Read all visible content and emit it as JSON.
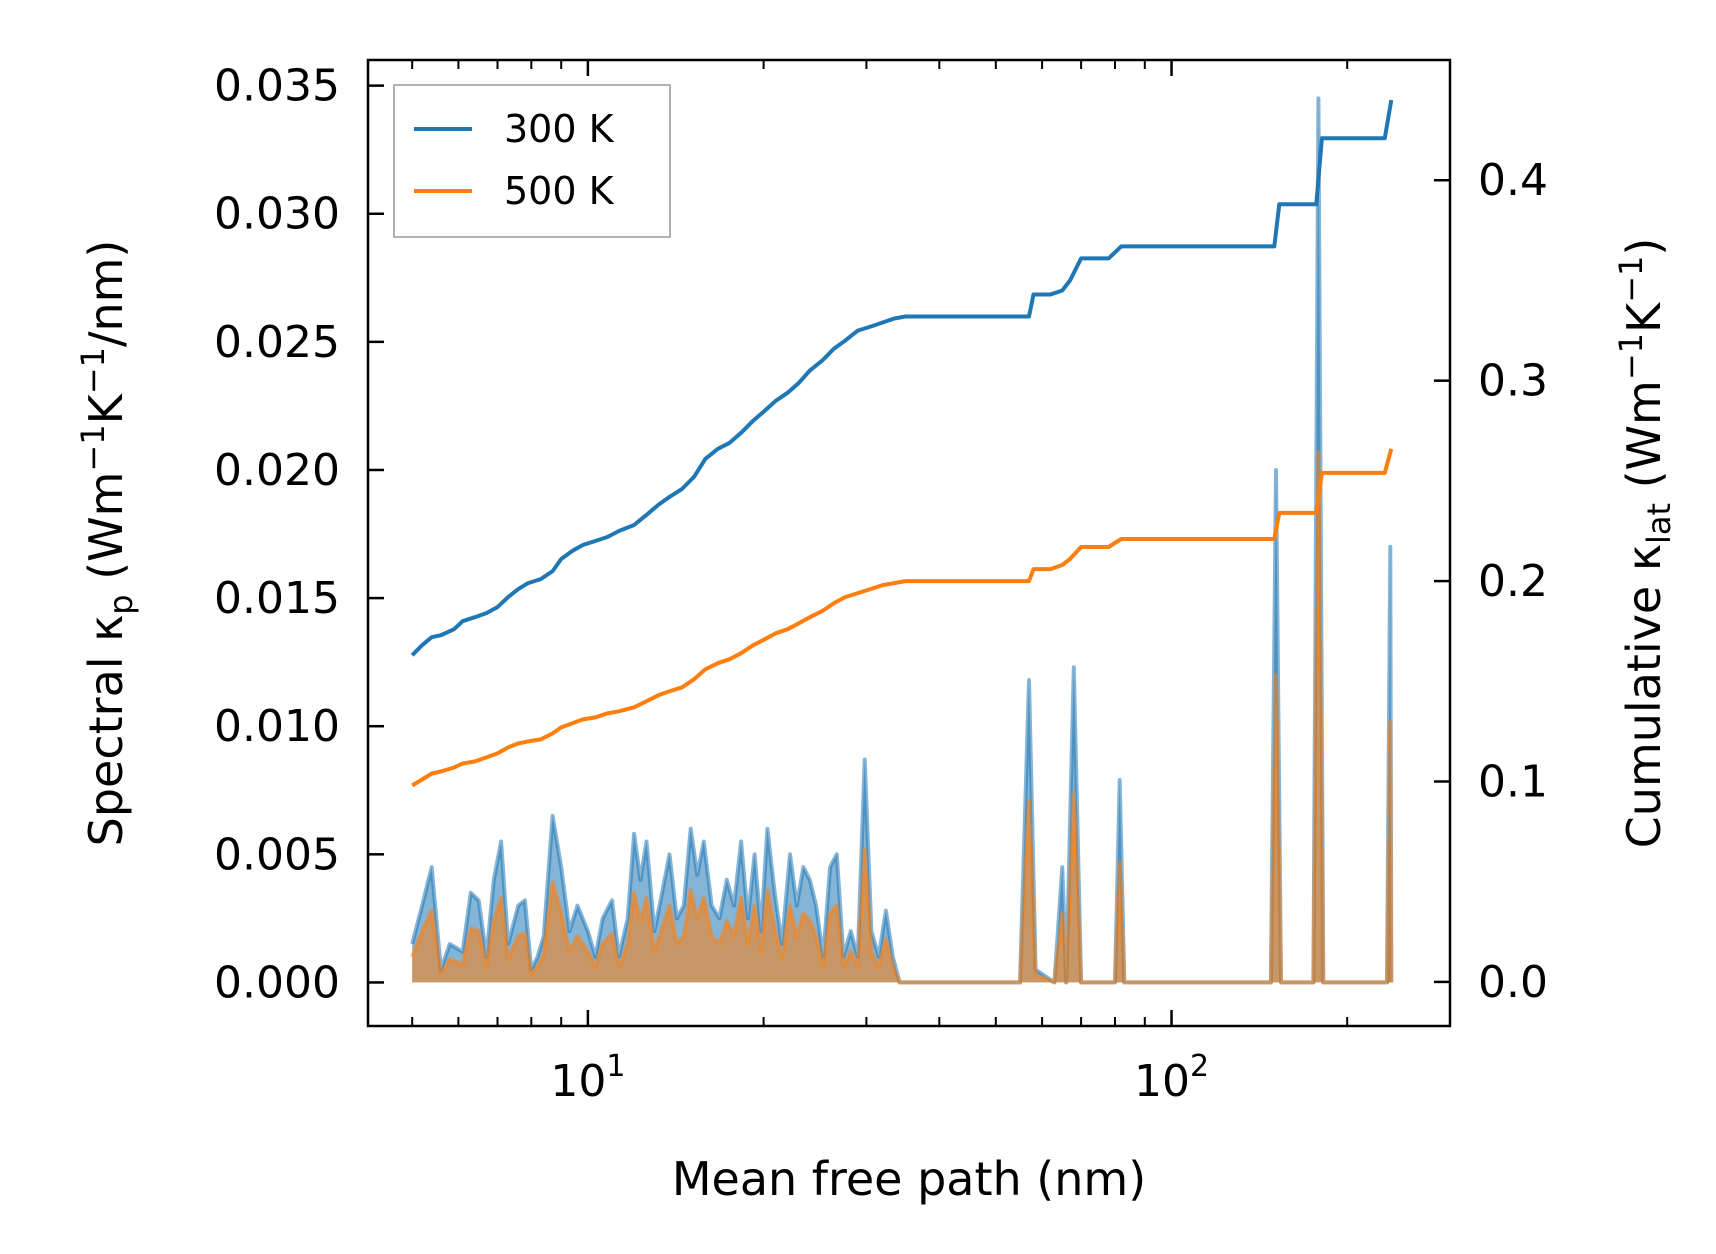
{
  "chart_data": {
    "type": "line",
    "title": "",
    "xlabel": "Mean free path (nm)",
    "xscale": "log",
    "xlim": [
      4.2,
      300
    ],
    "ylabel_left": {
      "main": "Spectral κ",
      "sub": "p",
      "unit_open": " (Wm",
      "sup1": "−1",
      "mid": "K",
      "sup2": "−1",
      "unit_close": "/nm)"
    },
    "ylabel_right": {
      "main": "Cumulative κ",
      "sub": "lat",
      "unit_open": " (Wm",
      "sup1": "−1",
      "mid": "K",
      "sup2": "−1",
      "unit_close": ")"
    },
    "ylim_left": [
      -0.0017,
      0.036
    ],
    "ylim_right": [
      -0.022,
      0.46
    ],
    "xticks": [
      {
        "value": 10,
        "base": "10",
        "exp": "1"
      },
      {
        "value": 100,
        "base": "10",
        "exp": "2"
      }
    ],
    "yticks_left": [
      {
        "value": 0.0,
        "label": "0.000"
      },
      {
        "value": 0.005,
        "label": "0.005"
      },
      {
        "value": 0.01,
        "label": "0.010"
      },
      {
        "value": 0.015,
        "label": "0.015"
      },
      {
        "value": 0.02,
        "label": "0.020"
      },
      {
        "value": 0.025,
        "label": "0.025"
      },
      {
        "value": 0.03,
        "label": "0.030"
      },
      {
        "value": 0.035,
        "label": "0.035"
      }
    ],
    "yticks_right": [
      {
        "value": 0.0,
        "label": "0.0"
      },
      {
        "value": 0.1,
        "label": "0.1"
      },
      {
        "value": 0.2,
        "label": "0.2"
      },
      {
        "value": 0.3,
        "label": "0.3"
      },
      {
        "value": 0.4,
        "label": "0.4"
      }
    ],
    "legend": {
      "position": "upper-left",
      "entries": [
        {
          "label": "300 K",
          "color": "#1f77b4"
        },
        {
          "label": "500 K",
          "color": "#ff7f0e"
        }
      ]
    },
    "series": [
      {
        "name": "300 K",
        "color": "#1f77b4",
        "cumulative": [
          [
            5.0,
            0.163
          ],
          [
            5.2,
            0.168
          ],
          [
            5.4,
            0.172
          ],
          [
            5.6,
            0.173
          ],
          [
            5.9,
            0.176
          ],
          [
            6.1,
            0.18
          ],
          [
            6.4,
            0.182
          ],
          [
            6.7,
            0.184
          ],
          [
            7.0,
            0.187
          ],
          [
            7.3,
            0.192
          ],
          [
            7.6,
            0.196
          ],
          [
            7.9,
            0.199
          ],
          [
            8.3,
            0.201
          ],
          [
            8.7,
            0.205
          ],
          [
            9.0,
            0.211
          ],
          [
            9.4,
            0.215
          ],
          [
            9.8,
            0.218
          ],
          [
            10.3,
            0.22
          ],
          [
            10.8,
            0.222
          ],
          [
            11.3,
            0.225
          ],
          [
            12.0,
            0.228
          ],
          [
            12.6,
            0.233
          ],
          [
            13.2,
            0.238
          ],
          [
            13.8,
            0.242
          ],
          [
            14.5,
            0.246
          ],
          [
            15.2,
            0.252
          ],
          [
            15.9,
            0.261
          ],
          [
            16.7,
            0.266
          ],
          [
            17.5,
            0.269
          ],
          [
            18.3,
            0.274
          ],
          [
            19.2,
            0.28
          ],
          [
            20.1,
            0.285
          ],
          [
            21.0,
            0.29
          ],
          [
            22.0,
            0.294
          ],
          [
            23.0,
            0.299
          ],
          [
            24.0,
            0.305
          ],
          [
            25.2,
            0.31
          ],
          [
            26.4,
            0.316
          ],
          [
            27.6,
            0.32
          ],
          [
            29.0,
            0.325
          ],
          [
            30.5,
            0.327
          ],
          [
            32.0,
            0.329
          ],
          [
            33.5,
            0.331
          ],
          [
            35.0,
            0.332
          ],
          [
            57.0,
            0.332
          ],
          [
            58.0,
            0.343
          ],
          [
            62.0,
            0.343
          ],
          [
            65.0,
            0.345
          ],
          [
            67.0,
            0.35
          ],
          [
            70.0,
            0.361
          ],
          [
            78.0,
            0.361
          ],
          [
            82.0,
            0.367
          ],
          [
            150.0,
            0.367
          ],
          [
            153.0,
            0.388
          ],
          [
            177.0,
            0.388
          ],
          [
            181.0,
            0.421
          ],
          [
            232.0,
            0.421
          ],
          [
            238.0,
            0.44
          ]
        ],
        "spectral": [
          [
            5.0,
            0.0015
          ],
          [
            5.2,
            0.003
          ],
          [
            5.4,
            0.0045
          ],
          [
            5.6,
            0.0005
          ],
          [
            5.8,
            0.0015
          ],
          [
            6.1,
            0.0012
          ],
          [
            6.3,
            0.0035
          ],
          [
            6.5,
            0.0032
          ],
          [
            6.7,
            0.001
          ],
          [
            6.9,
            0.004
          ],
          [
            7.1,
            0.0055
          ],
          [
            7.3,
            0.0015
          ],
          [
            7.6,
            0.003
          ],
          [
            7.8,
            0.0032
          ],
          [
            8.0,
            0.0005
          ],
          [
            8.2,
            0.001
          ],
          [
            8.4,
            0.0018
          ],
          [
            8.7,
            0.0065
          ],
          [
            9.0,
            0.0045
          ],
          [
            9.3,
            0.002
          ],
          [
            9.6,
            0.003
          ],
          [
            10.0,
            0.002
          ],
          [
            10.3,
            0.001
          ],
          [
            10.6,
            0.0025
          ],
          [
            11.0,
            0.0032
          ],
          [
            11.3,
            0.001
          ],
          [
            11.7,
            0.0025
          ],
          [
            12.0,
            0.0058
          ],
          [
            12.3,
            0.004
          ],
          [
            12.6,
            0.0055
          ],
          [
            13.0,
            0.002
          ],
          [
            13.4,
            0.0035
          ],
          [
            13.8,
            0.005
          ],
          [
            14.2,
            0.0025
          ],
          [
            14.6,
            0.003
          ],
          [
            15.0,
            0.006
          ],
          [
            15.4,
            0.0042
          ],
          [
            15.8,
            0.0055
          ],
          [
            16.3,
            0.003
          ],
          [
            16.8,
            0.0025
          ],
          [
            17.3,
            0.004
          ],
          [
            17.8,
            0.003
          ],
          [
            18.3,
            0.0055
          ],
          [
            18.8,
            0.0025
          ],
          [
            19.3,
            0.005
          ],
          [
            19.8,
            0.002
          ],
          [
            20.3,
            0.006
          ],
          [
            20.9,
            0.0035
          ],
          [
            21.5,
            0.0015
          ],
          [
            22.2,
            0.005
          ],
          [
            22.8,
            0.003
          ],
          [
            23.4,
            0.0045
          ],
          [
            24.0,
            0.004
          ],
          [
            24.6,
            0.003
          ],
          [
            25.3,
            0.001
          ],
          [
            26.0,
            0.0045
          ],
          [
            26.7,
            0.005
          ],
          [
            27.4,
            0.001
          ],
          [
            28.2,
            0.002
          ],
          [
            29.0,
            0.001
          ],
          [
            29.8,
            0.0087
          ],
          [
            30.6,
            0.002
          ],
          [
            31.5,
            0.001
          ],
          [
            32.4,
            0.0028
          ],
          [
            33.3,
            0.001
          ],
          [
            34.2,
            0.0
          ],
          [
            55.0,
            0.0
          ],
          [
            57.0,
            0.0118
          ],
          [
            58.5,
            0.0005
          ],
          [
            63.0,
            0.0
          ],
          [
            65.0,
            0.0045
          ],
          [
            66.0,
            0.0
          ],
          [
            68.0,
            0.0123
          ],
          [
            70.0,
            0.0
          ],
          [
            80.0,
            0.0
          ],
          [
            81.5,
            0.0079
          ],
          [
            83.0,
            0.0
          ],
          [
            148.0,
            0.0
          ],
          [
            151.0,
            0.02
          ],
          [
            154.0,
            0.0
          ],
          [
            175.0,
            0.0
          ],
          [
            178.5,
            0.0345
          ],
          [
            182.0,
            0.0
          ],
          [
            234.0,
            0.0
          ],
          [
            237.0,
            0.017
          ],
          [
            238.0,
            0.0
          ]
        ]
      },
      {
        "name": "500 K",
        "color": "#ff7f0e",
        "cumulative": [
          [
            5.0,
            0.098
          ],
          [
            5.2,
            0.101
          ],
          [
            5.4,
            0.104
          ],
          [
            5.6,
            0.105
          ],
          [
            5.9,
            0.107
          ],
          [
            6.1,
            0.109
          ],
          [
            6.4,
            0.11
          ],
          [
            6.7,
            0.112
          ],
          [
            7.0,
            0.114
          ],
          [
            7.3,
            0.117
          ],
          [
            7.6,
            0.119
          ],
          [
            7.9,
            0.12
          ],
          [
            8.3,
            0.121
          ],
          [
            8.7,
            0.124
          ],
          [
            9.0,
            0.127
          ],
          [
            9.4,
            0.129
          ],
          [
            9.8,
            0.131
          ],
          [
            10.3,
            0.132
          ],
          [
            10.8,
            0.134
          ],
          [
            11.3,
            0.135
          ],
          [
            12.0,
            0.137
          ],
          [
            12.6,
            0.14
          ],
          [
            13.2,
            0.143
          ],
          [
            13.8,
            0.145
          ],
          [
            14.5,
            0.147
          ],
          [
            15.2,
            0.151
          ],
          [
            15.9,
            0.156
          ],
          [
            16.7,
            0.159
          ],
          [
            17.5,
            0.161
          ],
          [
            18.3,
            0.164
          ],
          [
            19.2,
            0.168
          ],
          [
            20.1,
            0.171
          ],
          [
            21.0,
            0.174
          ],
          [
            22.0,
            0.176
          ],
          [
            23.0,
            0.179
          ],
          [
            24.0,
            0.182
          ],
          [
            25.2,
            0.185
          ],
          [
            26.4,
            0.189
          ],
          [
            27.6,
            0.192
          ],
          [
            29.0,
            0.194
          ],
          [
            30.5,
            0.196
          ],
          [
            32.0,
            0.198
          ],
          [
            33.5,
            0.199
          ],
          [
            35.0,
            0.2
          ],
          [
            57.0,
            0.2
          ],
          [
            58.0,
            0.206
          ],
          [
            62.0,
            0.206
          ],
          [
            65.0,
            0.208
          ],
          [
            67.0,
            0.211
          ],
          [
            70.0,
            0.217
          ],
          [
            78.0,
            0.217
          ],
          [
            82.0,
            0.221
          ],
          [
            150.0,
            0.221
          ],
          [
            153.0,
            0.234
          ],
          [
            177.0,
            0.234
          ],
          [
            181.0,
            0.254
          ],
          [
            232.0,
            0.254
          ],
          [
            238.0,
            0.266
          ]
        ],
        "spectral": [
          [
            5.0,
            0.001
          ],
          [
            5.2,
            0.002
          ],
          [
            5.4,
            0.0028
          ],
          [
            5.6,
            0.0003
          ],
          [
            5.8,
            0.0009
          ],
          [
            6.1,
            0.0007
          ],
          [
            6.3,
            0.0021
          ],
          [
            6.5,
            0.002
          ],
          [
            6.7,
            0.0006
          ],
          [
            6.9,
            0.0024
          ],
          [
            7.1,
            0.0033
          ],
          [
            7.3,
            0.0009
          ],
          [
            7.6,
            0.0018
          ],
          [
            7.8,
            0.0019
          ],
          [
            8.0,
            0.0003
          ],
          [
            8.2,
            0.0006
          ],
          [
            8.4,
            0.0011
          ],
          [
            8.7,
            0.0039
          ],
          [
            9.0,
            0.0027
          ],
          [
            9.3,
            0.0012
          ],
          [
            9.6,
            0.0018
          ],
          [
            10.0,
            0.0012
          ],
          [
            10.3,
            0.0006
          ],
          [
            10.6,
            0.0015
          ],
          [
            11.0,
            0.0019
          ],
          [
            11.3,
            0.0006
          ],
          [
            11.7,
            0.0015
          ],
          [
            12.0,
            0.0035
          ],
          [
            12.3,
            0.0024
          ],
          [
            12.6,
            0.0033
          ],
          [
            13.0,
            0.0012
          ],
          [
            13.4,
            0.0021
          ],
          [
            13.8,
            0.003
          ],
          [
            14.2,
            0.0015
          ],
          [
            14.6,
            0.0018
          ],
          [
            15.0,
            0.0036
          ],
          [
            15.4,
            0.0025
          ],
          [
            15.8,
            0.0033
          ],
          [
            16.3,
            0.0018
          ],
          [
            16.8,
            0.0015
          ],
          [
            17.3,
            0.0024
          ],
          [
            17.8,
            0.0018
          ],
          [
            18.3,
            0.0033
          ],
          [
            18.8,
            0.0015
          ],
          [
            19.3,
            0.003
          ],
          [
            19.8,
            0.0012
          ],
          [
            20.3,
            0.0036
          ],
          [
            20.9,
            0.0021
          ],
          [
            21.5,
            0.0009
          ],
          [
            22.2,
            0.003
          ],
          [
            22.8,
            0.0018
          ],
          [
            23.4,
            0.0027
          ],
          [
            24.0,
            0.0024
          ],
          [
            24.6,
            0.0018
          ],
          [
            25.3,
            0.0006
          ],
          [
            26.0,
            0.0027
          ],
          [
            26.7,
            0.003
          ],
          [
            27.4,
            0.0006
          ],
          [
            28.2,
            0.0012
          ],
          [
            29.0,
            0.0006
          ],
          [
            29.8,
            0.0052
          ],
          [
            30.6,
            0.0012
          ],
          [
            31.5,
            0.0006
          ],
          [
            32.4,
            0.0017
          ],
          [
            33.3,
            0.0006
          ],
          [
            34.2,
            0.0
          ],
          [
            55.0,
            0.0
          ],
          [
            57.0,
            0.0071
          ],
          [
            58.5,
            0.0003
          ],
          [
            63.0,
            0.0
          ],
          [
            65.0,
            0.0027
          ],
          [
            66.0,
            0.0
          ],
          [
            68.0,
            0.0074
          ],
          [
            70.0,
            0.0
          ],
          [
            80.0,
            0.0
          ],
          [
            81.5,
            0.0047
          ],
          [
            83.0,
            0.0
          ],
          [
            148.0,
            0.0
          ],
          [
            151.0,
            0.012
          ],
          [
            154.0,
            0.0
          ],
          [
            175.0,
            0.0
          ],
          [
            178.5,
            0.0207
          ],
          [
            182.0,
            0.0
          ],
          [
            234.0,
            0.0
          ],
          [
            237.0,
            0.0102
          ],
          [
            238.0,
            0.0
          ]
        ]
      }
    ]
  }
}
